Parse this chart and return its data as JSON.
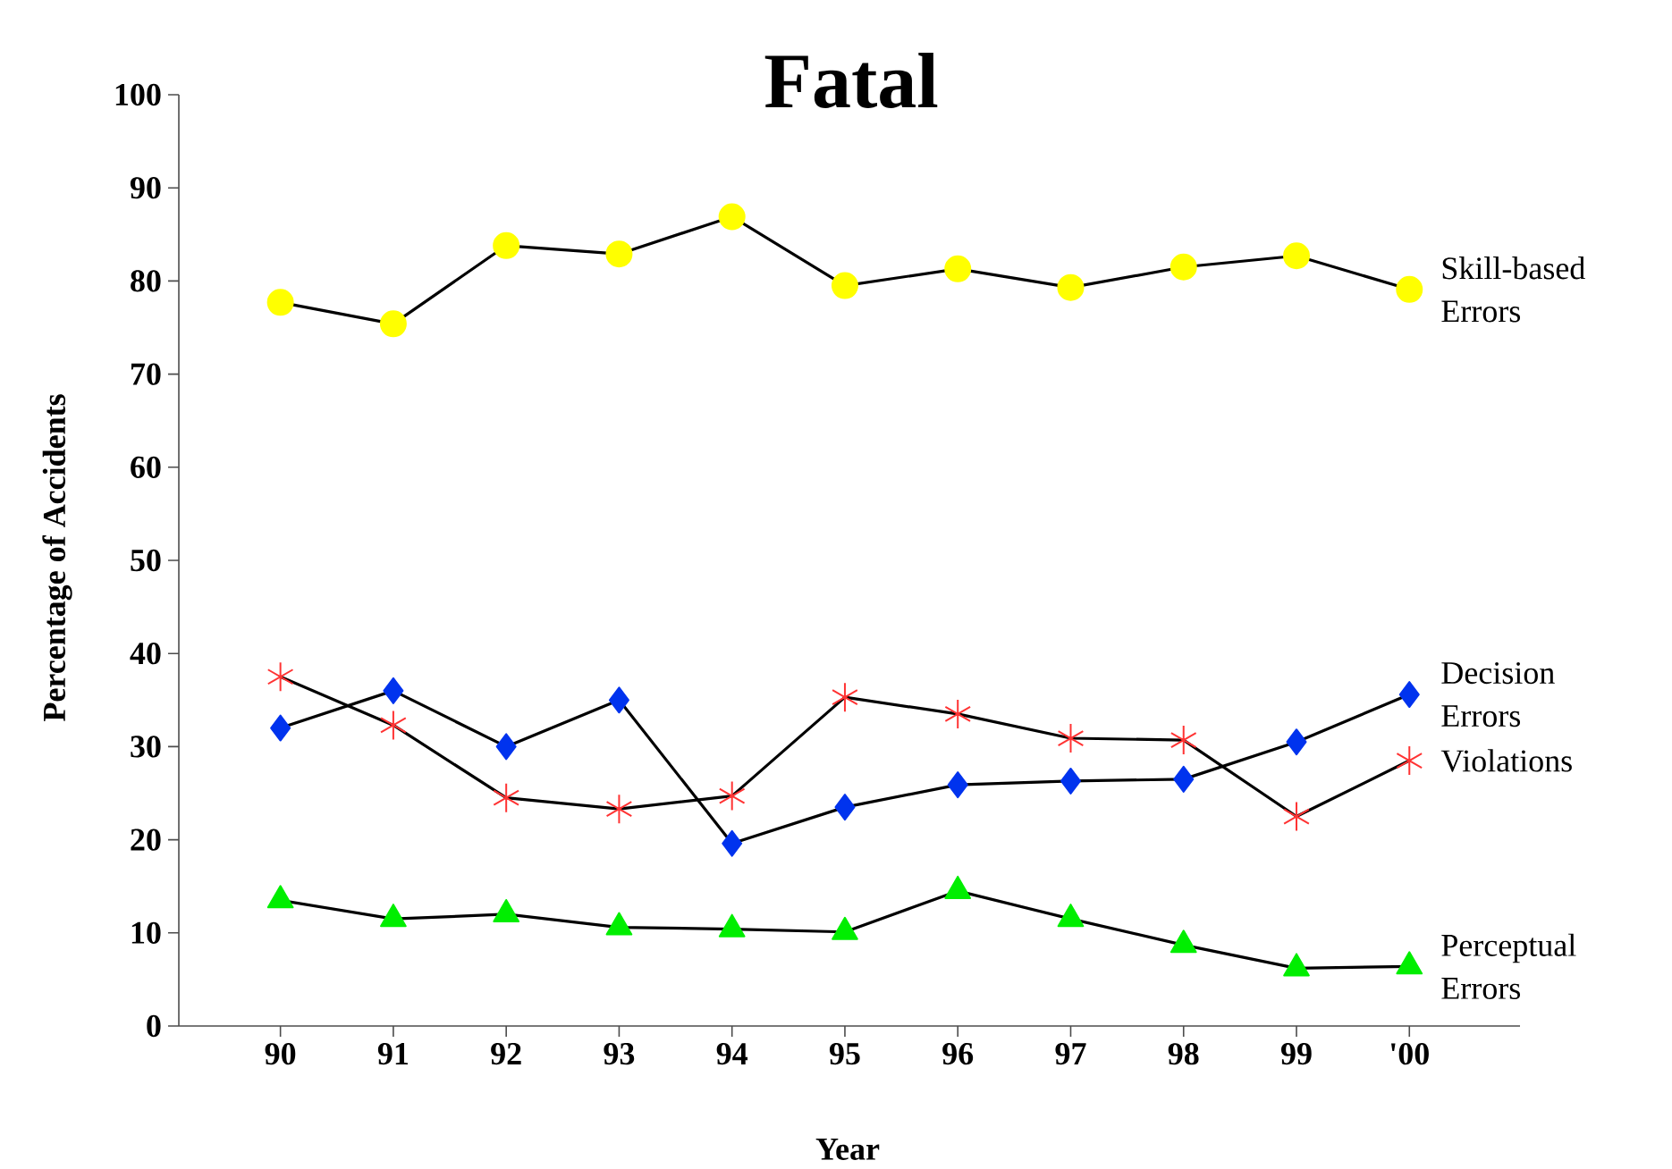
{
  "chart_data": {
    "type": "line",
    "title": "Fatal",
    "xlabel": "Year",
    "ylabel": "Percentage of Accidents",
    "categories": [
      "90",
      "91",
      "92",
      "93",
      "94",
      "95",
      "96",
      "97",
      "98",
      "99",
      "'00"
    ],
    "ylim": [
      0,
      100
    ],
    "yticks": [
      0,
      10,
      20,
      30,
      40,
      50,
      60,
      70,
      80,
      90,
      100
    ],
    "grid": false,
    "legend": false,
    "series": [
      {
        "name": "Skill-based Errors",
        "color": "#ffff00",
        "marker": "circle",
        "values": [
          77.7,
          75.4,
          83.8,
          82.9,
          86.9,
          79.5,
          81.3,
          79.3,
          81.5,
          82.7,
          79.1
        ]
      },
      {
        "name": "Decision Errors",
        "color": "#0033ee",
        "marker": "diamond",
        "values": [
          32,
          36,
          30,
          35,
          19.6,
          23.5,
          25.9,
          26.3,
          26.5,
          30.5,
          35.6
        ]
      },
      {
        "name": "Violations",
        "color": "#ff3333",
        "marker": "cross",
        "values": [
          37.5,
          32.3,
          24.5,
          23.3,
          24.7,
          35.3,
          33.5,
          30.9,
          30.7,
          22.5,
          28.5
        ]
      },
      {
        "name": "Perceptual Errors",
        "color": "#00ee00",
        "marker": "triangle",
        "values": [
          13.5,
          11.5,
          12,
          10.6,
          10.4,
          10.1,
          14.5,
          11.5,
          8.7,
          6.2,
          6.4
        ]
      }
    ]
  }
}
